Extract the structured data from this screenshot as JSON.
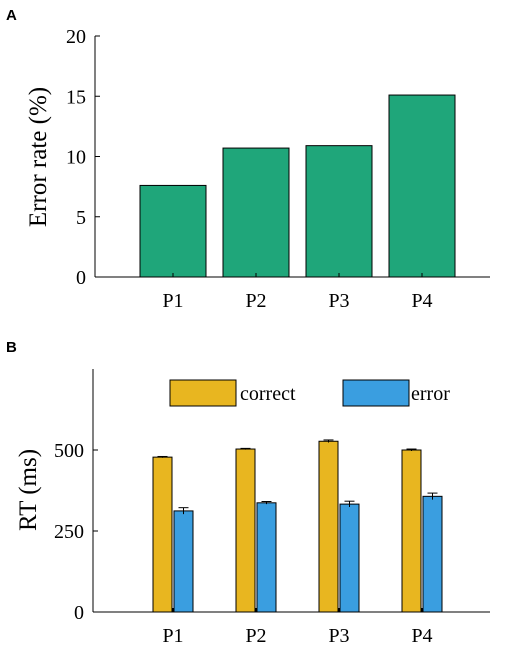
{
  "chart_data": [
    {
      "panel": "A",
      "type": "bar",
      "categories": [
        "P1",
        "P2",
        "P3",
        "P4"
      ],
      "values": [
        7.6,
        10.7,
        10.9,
        15.1
      ],
      "ylabel": "Error rate (%)",
      "xlabel": "",
      "ylim": [
        0,
        20
      ],
      "yticks": [
        0,
        5,
        10,
        15,
        20
      ],
      "grid": false,
      "color": "#1fa67a"
    },
    {
      "panel": "B",
      "type": "bar",
      "categories": [
        "P1",
        "P2",
        "P3",
        "P4"
      ],
      "series": [
        {
          "name": "correct",
          "values": [
            478,
            503,
            527,
            500
          ],
          "errors": [
            2,
            2,
            4,
            3
          ],
          "color": "#e8b620"
        },
        {
          "name": "error",
          "values": [
            312,
            337,
            333,
            357
          ],
          "errors": [
            10,
            4,
            9,
            10
          ],
          "color": "#3a9ee0"
        }
      ],
      "ylabel": "RT (ms)",
      "xlabel": "",
      "ylim": [
        0,
        750
      ],
      "yticks": [
        0,
        250,
        500
      ],
      "legend": "top",
      "grid": false
    }
  ]
}
